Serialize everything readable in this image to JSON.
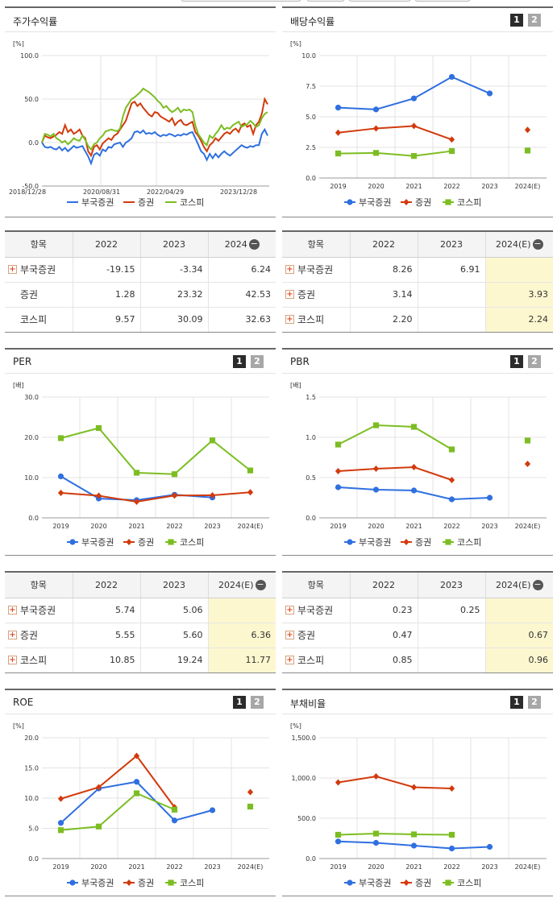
{
  "colors": {
    "series1": "#2f6fe0",
    "series2": "#d23a0c",
    "series3": "#7cbd22"
  },
  "panels": {
    "stock": {
      "title": "주가수익률",
      "unit": "[%]"
    },
    "dividend": {
      "title": "배당수익률",
      "unit": "[%]",
      "pages": [
        "1",
        "2"
      ]
    },
    "per": {
      "title": "PER",
      "unit": "[배]",
      "pages": [
        "1",
        "2"
      ]
    },
    "pbr": {
      "title": "PBR",
      "unit": "[배]",
      "pages": [
        "1",
        "2"
      ]
    },
    "roe": {
      "title": "ROE",
      "unit": "[%]",
      "pages": [
        "1",
        "2"
      ]
    },
    "debt": {
      "title": "부채비율",
      "unit": "[%]",
      "pages": [
        "1",
        "2"
      ]
    }
  },
  "chart_data": [
    {
      "id": "stock",
      "type": "line",
      "title": "주가수익률",
      "ylim": [
        -50,
        100
      ],
      "yticks": [
        "100.0",
        "50.0",
        "0.0",
        "-50.0"
      ],
      "xticks": [
        "2018/12/28",
        "2020/08/31",
        "2022/04/29",
        "2023/12/28"
      ],
      "series": [
        {
          "name": "부국증권",
          "values": [
            0,
            -5,
            -6,
            -5,
            -7,
            -8,
            -5,
            -9,
            -6,
            -10,
            -7,
            -4,
            -6,
            -5,
            -4,
            -10,
            -16,
            -24,
            -14,
            -12,
            -15,
            -8,
            -10,
            -5,
            -6,
            -2,
            -1,
            0,
            -5,
            0,
            2,
            5,
            12,
            13,
            11,
            14,
            10,
            11,
            10,
            12,
            9,
            7,
            9,
            8,
            10,
            9,
            7,
            9,
            8,
            10,
            9,
            11,
            12,
            5,
            -2,
            -10,
            -13,
            -20,
            -13,
            -18,
            -13,
            -17,
            -13,
            -10,
            -13,
            -15,
            -12,
            -9,
            -6,
            -3,
            -5,
            -6,
            -4,
            -5,
            -3,
            -3,
            10,
            15,
            8
          ]
        },
        {
          "name": "증권",
          "values": [
            0,
            8,
            6,
            5,
            7,
            9,
            12,
            10,
            20,
            12,
            15,
            10,
            12,
            15,
            8,
            5,
            -10,
            -15,
            -5,
            -3,
            -8,
            -1,
            2,
            5,
            3,
            8,
            10,
            15,
            20,
            25,
            35,
            45,
            47,
            42,
            45,
            40,
            36,
            32,
            30,
            35,
            34,
            30,
            28,
            26,
            24,
            28,
            20,
            24,
            26,
            21,
            20,
            22,
            24,
            12,
            8,
            2,
            -5,
            -10,
            -3,
            0,
            5,
            2,
            6,
            10,
            12,
            10,
            14,
            16,
            12,
            20,
            22,
            18,
            20,
            10,
            20,
            24,
            33,
            50,
            44
          ]
        },
        {
          "name": "코스피",
          "values": [
            0,
            10,
            9,
            7,
            10,
            5,
            3,
            0,
            2,
            -2,
            1,
            5,
            3,
            2,
            8,
            3,
            -4,
            -8,
            -2,
            0,
            5,
            8,
            13,
            14,
            15,
            14,
            13,
            16,
            30,
            40,
            45,
            50,
            52,
            55,
            58,
            62,
            60,
            58,
            55,
            52,
            48,
            45,
            40,
            42,
            38,
            35,
            37,
            40,
            35,
            38,
            37,
            38,
            35,
            20,
            10,
            5,
            0,
            -3,
            8,
            5,
            10,
            14,
            20,
            15,
            17,
            16,
            20,
            22,
            24,
            18,
            20,
            21,
            25,
            22,
            18,
            20,
            28,
            33,
            35
          ]
        }
      ]
    },
    {
      "id": "dividend",
      "type": "line",
      "title": "배당수익률",
      "ylim": [
        0,
        10
      ],
      "yticks": [
        "10.0",
        "7.5",
        "5.0",
        "2.5",
        "0.0"
      ],
      "categories": [
        "2019",
        "2020",
        "2021",
        "2022",
        "2023",
        "2024(E)"
      ],
      "series": [
        {
          "name": "부국증권",
          "values": [
            5.75,
            5.6,
            6.5,
            8.26,
            6.91,
            null
          ]
        },
        {
          "name": "증권",
          "values": [
            3.7,
            4.05,
            4.25,
            3.14,
            null,
            3.93
          ]
        },
        {
          "name": "코스피",
          "values": [
            2.0,
            2.05,
            1.8,
            2.2,
            null,
            2.24
          ]
        }
      ]
    },
    {
      "id": "per",
      "type": "line",
      "title": "PER",
      "ylim": [
        0,
        30
      ],
      "yticks": [
        "30.0",
        "20.0",
        "10.0",
        "0.0"
      ],
      "categories": [
        "2019",
        "2020",
        "2021",
        "2022",
        "2023",
        "2024(E)"
      ],
      "series": [
        {
          "name": "부국증권",
          "values": [
            10.3,
            4.8,
            4.4,
            5.74,
            5.06,
            null
          ]
        },
        {
          "name": "증권",
          "values": [
            6.2,
            5.5,
            4.0,
            5.55,
            5.6,
            6.36
          ]
        },
        {
          "name": "코스피",
          "values": [
            19.8,
            22.3,
            11.2,
            10.85,
            19.24,
            11.77
          ]
        }
      ]
    },
    {
      "id": "pbr",
      "type": "line",
      "title": "PBR",
      "ylim": [
        0,
        1.5
      ],
      "yticks": [
        "1.5",
        "1.0",
        "0.5",
        "0.0"
      ],
      "categories": [
        "2019",
        "2020",
        "2021",
        "2022",
        "2023",
        "2024(E)"
      ],
      "series": [
        {
          "name": "부국증권",
          "values": [
            0.38,
            0.35,
            0.34,
            0.23,
            0.25,
            null
          ]
        },
        {
          "name": "증권",
          "values": [
            0.58,
            0.61,
            0.63,
            0.47,
            null,
            0.67
          ]
        },
        {
          "name": "코스피",
          "values": [
            0.91,
            1.15,
            1.13,
            0.85,
            null,
            0.96
          ]
        }
      ]
    },
    {
      "id": "roe",
      "type": "line",
      "title": "ROE",
      "ylim": [
        0,
        20
      ],
      "yticks": [
        "20.0",
        "15.0",
        "10.0",
        "5.0",
        "0.0"
      ],
      "categories": [
        "2019",
        "2020",
        "2021",
        "2022",
        "2023",
        "2024(E)"
      ],
      "series": [
        {
          "name": "부국증권",
          "values": [
            5.9,
            11.6,
            12.7,
            6.3,
            8.0,
            null
          ]
        },
        {
          "name": "증권",
          "values": [
            9.9,
            11.8,
            17.0,
            8.5,
            null,
            11.0
          ]
        },
        {
          "name": "코스피",
          "values": [
            4.7,
            5.3,
            10.8,
            8.1,
            null,
            8.6
          ]
        }
      ]
    },
    {
      "id": "debt",
      "type": "line",
      "title": "부채비율",
      "ylim": [
        0,
        1500
      ],
      "yticks": [
        "1,500.0",
        "1,000.0",
        "500.0",
        "0.0"
      ],
      "categories": [
        "2019",
        "2020",
        "2021",
        "2022",
        "2023",
        "2024(E)"
      ],
      "series": [
        {
          "name": "부국증권",
          "values": [
            212,
            195,
            160,
            125,
            145,
            null
          ]
        },
        {
          "name": "증권",
          "values": [
            945,
            1020,
            885,
            870,
            null,
            null
          ]
        },
        {
          "name": "코스피",
          "values": [
            295,
            310,
            300,
            295,
            null,
            null
          ]
        }
      ]
    }
  ],
  "tables": {
    "stock": {
      "headers": [
        "항목",
        "2022",
        "2023",
        "2024"
      ],
      "rows": [
        {
          "name": "부국증권",
          "expand": true,
          "cells": [
            "-19.15",
            "-3.34",
            "6.24"
          ]
        },
        {
          "name": "증권",
          "expand": false,
          "cells": [
            "1.28",
            "23.32",
            "42.53"
          ]
        },
        {
          "name": "코스피",
          "expand": false,
          "cells": [
            "9.57",
            "30.09",
            "32.63"
          ]
        }
      ]
    },
    "dividend": {
      "headers": [
        "항목",
        "2022",
        "2023",
        "2024(E)"
      ],
      "rows": [
        {
          "name": "부국증권",
          "expand": true,
          "cells": [
            "8.26",
            "6.91",
            ""
          ]
        },
        {
          "name": "증권",
          "expand": true,
          "cells": [
            "3.14",
            "",
            "3.93"
          ]
        },
        {
          "name": "코스피",
          "expand": true,
          "cells": [
            "2.20",
            "",
            "2.24"
          ]
        }
      ]
    },
    "per": {
      "headers": [
        "항목",
        "2022",
        "2023",
        "2024(E)"
      ],
      "rows": [
        {
          "name": "부국증권",
          "expand": true,
          "cells": [
            "5.74",
            "5.06",
            ""
          ]
        },
        {
          "name": "증권",
          "expand": true,
          "cells": [
            "5.55",
            "5.60",
            "6.36"
          ]
        },
        {
          "name": "코스피",
          "expand": true,
          "cells": [
            "10.85",
            "19.24",
            "11.77"
          ]
        }
      ]
    },
    "pbr": {
      "headers": [
        "항목",
        "2022",
        "2023",
        "2024(E)"
      ],
      "rows": [
        {
          "name": "부국증권",
          "expand": true,
          "cells": [
            "0.23",
            "0.25",
            ""
          ]
        },
        {
          "name": "증권",
          "expand": true,
          "cells": [
            "0.47",
            "",
            "0.67"
          ]
        },
        {
          "name": "코스피",
          "expand": true,
          "cells": [
            "0.85",
            "",
            "0.96"
          ]
        }
      ]
    }
  }
}
